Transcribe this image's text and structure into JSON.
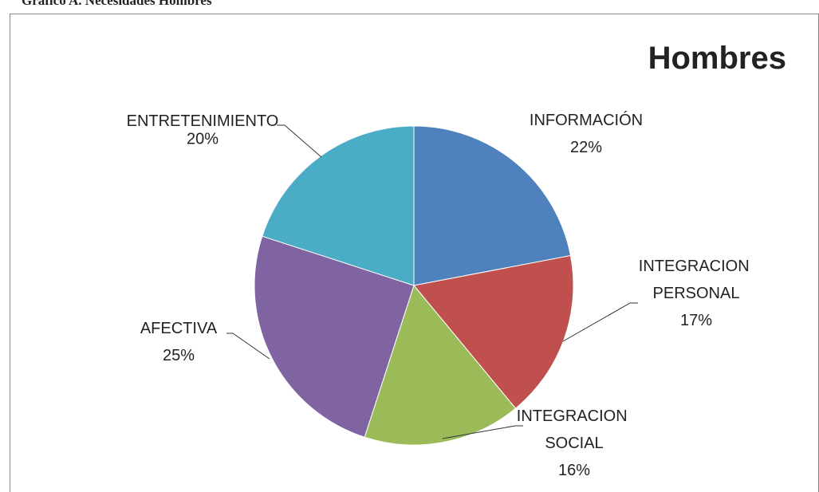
{
  "caption": "Gráfico A.  Necesidades Hombres",
  "chart_data": {
    "type": "pie",
    "title": "Hombres",
    "categories": [
      "INFORMACIÓN",
      "INTEGRACION PERSONAL",
      "INTEGRACION SOCIAL",
      "AFECTIVA",
      "ENTRETENIMIENTO"
    ],
    "values": [
      22,
      17,
      16,
      25,
      20
    ],
    "value_labels": [
      "22%",
      "17%",
      "16%",
      "25%",
      "20%"
    ],
    "colors": [
      "#4f81bd",
      "#c0504d",
      "#9bbb59",
      "#8064a2",
      "#4bacc6"
    ]
  }
}
